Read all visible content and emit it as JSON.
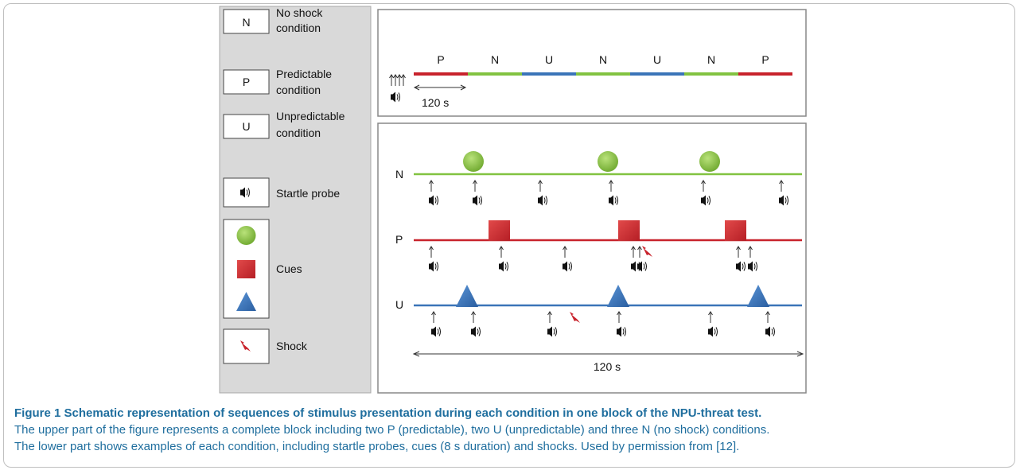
{
  "legend": {
    "items": [
      {
        "box": "N",
        "label_line1": "No shock",
        "label_line2": "condition"
      },
      {
        "box": "P",
        "label_line1": "Predictable",
        "label_line2": "condition"
      },
      {
        "box": "U",
        "label_line1": "Unpredictable",
        "label_line2": "condition"
      }
    ],
    "startle_label": "Startle probe",
    "cues_label": "Cues",
    "shock_label": "Shock"
  },
  "block": {
    "sequence": [
      "P",
      "N",
      "U",
      "N",
      "U",
      "N",
      "P"
    ],
    "duration_label": "120 s"
  },
  "examples": {
    "row_labels": [
      "N",
      "P",
      "U"
    ],
    "duration_label": "120 s"
  },
  "colors": {
    "N": "#82c341",
    "P": "#c8232c",
    "U": "#3a74b8",
    "panel": "#d9d9d9",
    "caption": "#1f6e9e"
  },
  "caption": {
    "title": "Figure 1 Schematic representation of sequences of stimulus presentation during each condition in one block of the NPU-threat test.",
    "line1": "The upper part of the figure represents a complete block including two P (predictable), two U (unpredictable) and three N (no shock) conditions.",
    "line2": "The lower part shows examples of each condition, including startle probes, cues (8 s duration) and shocks. Used by permission from [12]."
  }
}
